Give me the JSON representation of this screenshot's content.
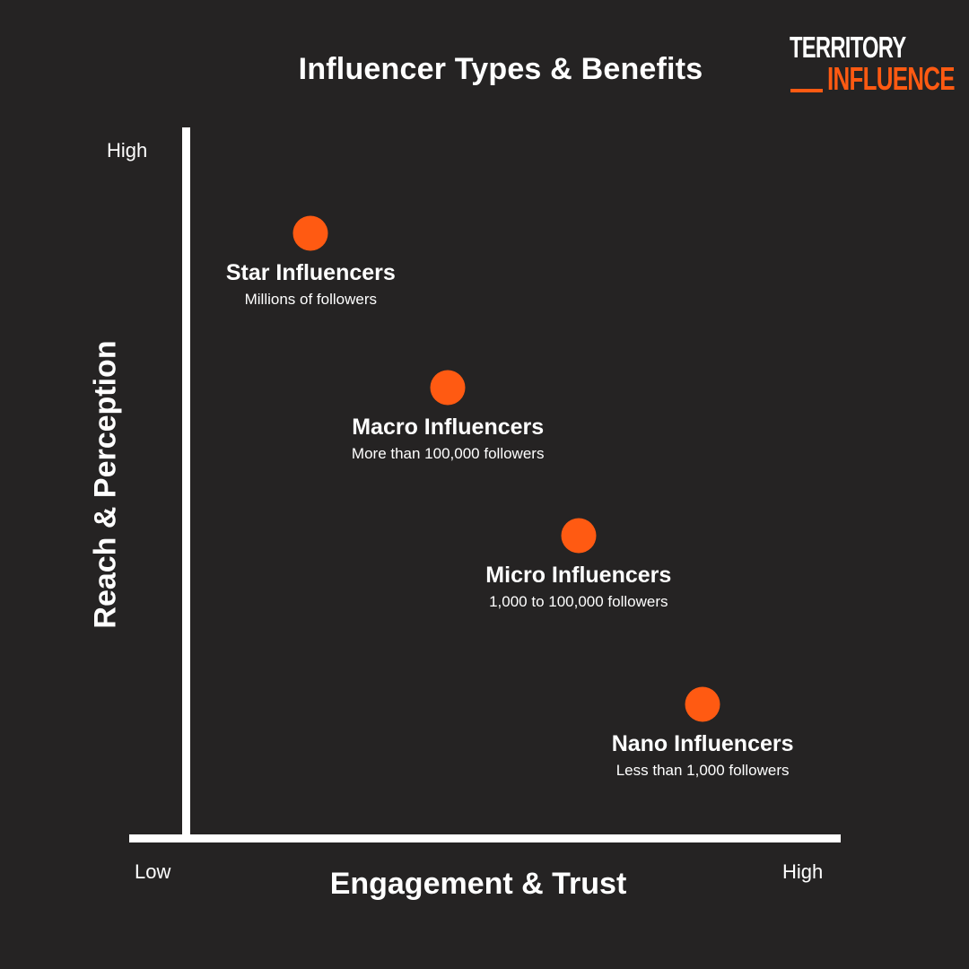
{
  "title": "Influencer Types & Benefits",
  "logo": {
    "line1": "TERRITORY",
    "line2": "INFLUENCE",
    "accent_color": "#ff5a12"
  },
  "colors": {
    "background": "#252323",
    "axis": "#ffffff",
    "point": "#ff5a12"
  },
  "chart_data": {
    "type": "scatter",
    "title": "Influencer Types & Benefits",
    "xlabel": "Engagement & Trust",
    "ylabel": "Reach & Perception",
    "x_ticks": [
      "Low",
      "High"
    ],
    "y_ticks": [
      "High"
    ],
    "xlim": [
      0,
      100
    ],
    "ylim": [
      0,
      100
    ],
    "grid": false,
    "points": [
      {
        "name": "Star Influencers",
        "description": "Millions of followers",
        "x": 19,
        "y": 86
      },
      {
        "name": "Macro Influencers",
        "description": "More than 100,000 followers",
        "x": 40,
        "y": 64
      },
      {
        "name": "Micro Influencers",
        "description": "1,000 to 100,000 followers",
        "x": 60,
        "y": 43
      },
      {
        "name": "Nano Influencers",
        "description": "Less than 1,000 followers",
        "x": 79,
        "y": 19
      }
    ]
  }
}
